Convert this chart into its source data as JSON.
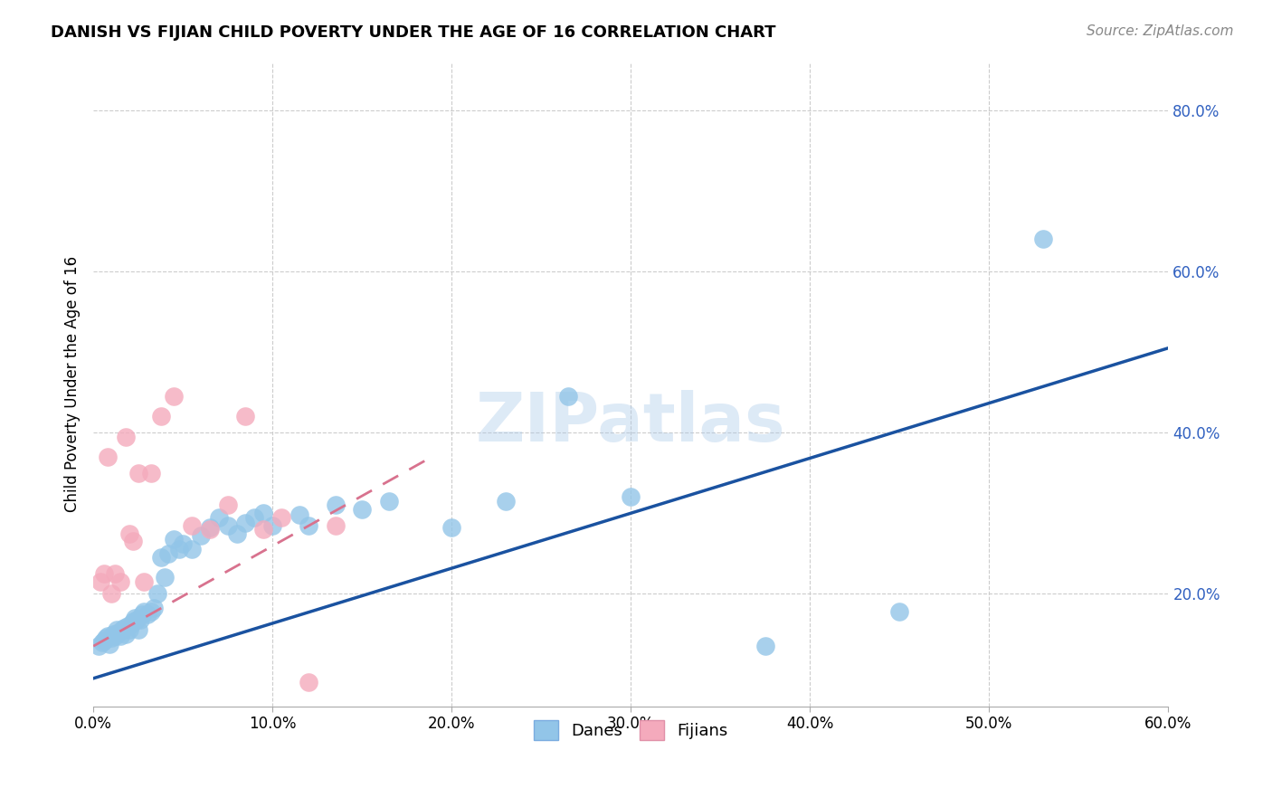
{
  "title": "DANISH VS FIJIAN CHILD POVERTY UNDER THE AGE OF 16 CORRELATION CHART",
  "source": "Source: ZipAtlas.com",
  "ylabel": "Child Poverty Under the Age of 16",
  "xlim": [
    0.0,
    0.6
  ],
  "ylim": [
    0.06,
    0.86
  ],
  "x_ticks": [
    0.0,
    0.1,
    0.2,
    0.3,
    0.4,
    0.5,
    0.6
  ],
  "y_ticks": [
    0.2,
    0.4,
    0.6,
    0.8
  ],
  "danes_color": "#92C5E8",
  "fijians_color": "#F4AABC",
  "danes_line_color": "#1A52A0",
  "fijians_line_color": "#D8728E",
  "right_axis_color": "#3060C0",
  "watermark": "ZIPatlas",
  "danes_x": [
    0.003,
    0.005,
    0.006,
    0.007,
    0.008,
    0.009,
    0.01,
    0.011,
    0.012,
    0.013,
    0.014,
    0.015,
    0.016,
    0.017,
    0.018,
    0.019,
    0.02,
    0.021,
    0.022,
    0.023,
    0.024,
    0.025,
    0.026,
    0.027,
    0.028,
    0.03,
    0.032,
    0.034,
    0.036,
    0.038,
    0.04,
    0.042,
    0.045,
    0.048,
    0.05,
    0.055,
    0.06,
    0.065,
    0.07,
    0.075,
    0.08,
    0.085,
    0.09,
    0.095,
    0.1,
    0.115,
    0.12,
    0.135,
    0.15,
    0.165,
    0.2,
    0.23,
    0.265,
    0.3,
    0.375,
    0.45,
    0.53
  ],
  "danes_y": [
    0.135,
    0.14,
    0.142,
    0.145,
    0.148,
    0.138,
    0.145,
    0.15,
    0.148,
    0.155,
    0.152,
    0.148,
    0.155,
    0.158,
    0.15,
    0.16,
    0.155,
    0.162,
    0.165,
    0.17,
    0.168,
    0.155,
    0.168,
    0.175,
    0.178,
    0.175,
    0.178,
    0.182,
    0.2,
    0.245,
    0.22,
    0.25,
    0.268,
    0.255,
    0.262,
    0.255,
    0.272,
    0.282,
    0.295,
    0.285,
    0.275,
    0.288,
    0.295,
    0.3,
    0.285,
    0.298,
    0.285,
    0.31,
    0.305,
    0.315,
    0.282,
    0.315,
    0.445,
    0.32,
    0.135,
    0.178,
    0.64
  ],
  "fijians_x": [
    0.004,
    0.006,
    0.008,
    0.01,
    0.012,
    0.015,
    0.018,
    0.02,
    0.022,
    0.025,
    0.028,
    0.032,
    0.038,
    0.045,
    0.055,
    0.065,
    0.075,
    0.085,
    0.095,
    0.105,
    0.12,
    0.135
  ],
  "fijians_y": [
    0.215,
    0.225,
    0.37,
    0.2,
    0.225,
    0.215,
    0.395,
    0.275,
    0.265,
    0.35,
    0.215,
    0.35,
    0.42,
    0.445,
    0.285,
    0.28,
    0.31,
    0.42,
    0.28,
    0.295,
    0.09,
    0.285
  ],
  "danes_line": [
    0.0,
    0.6,
    0.095,
    0.505
  ],
  "fijians_line": [
    0.0,
    0.185,
    0.135,
    0.365
  ]
}
